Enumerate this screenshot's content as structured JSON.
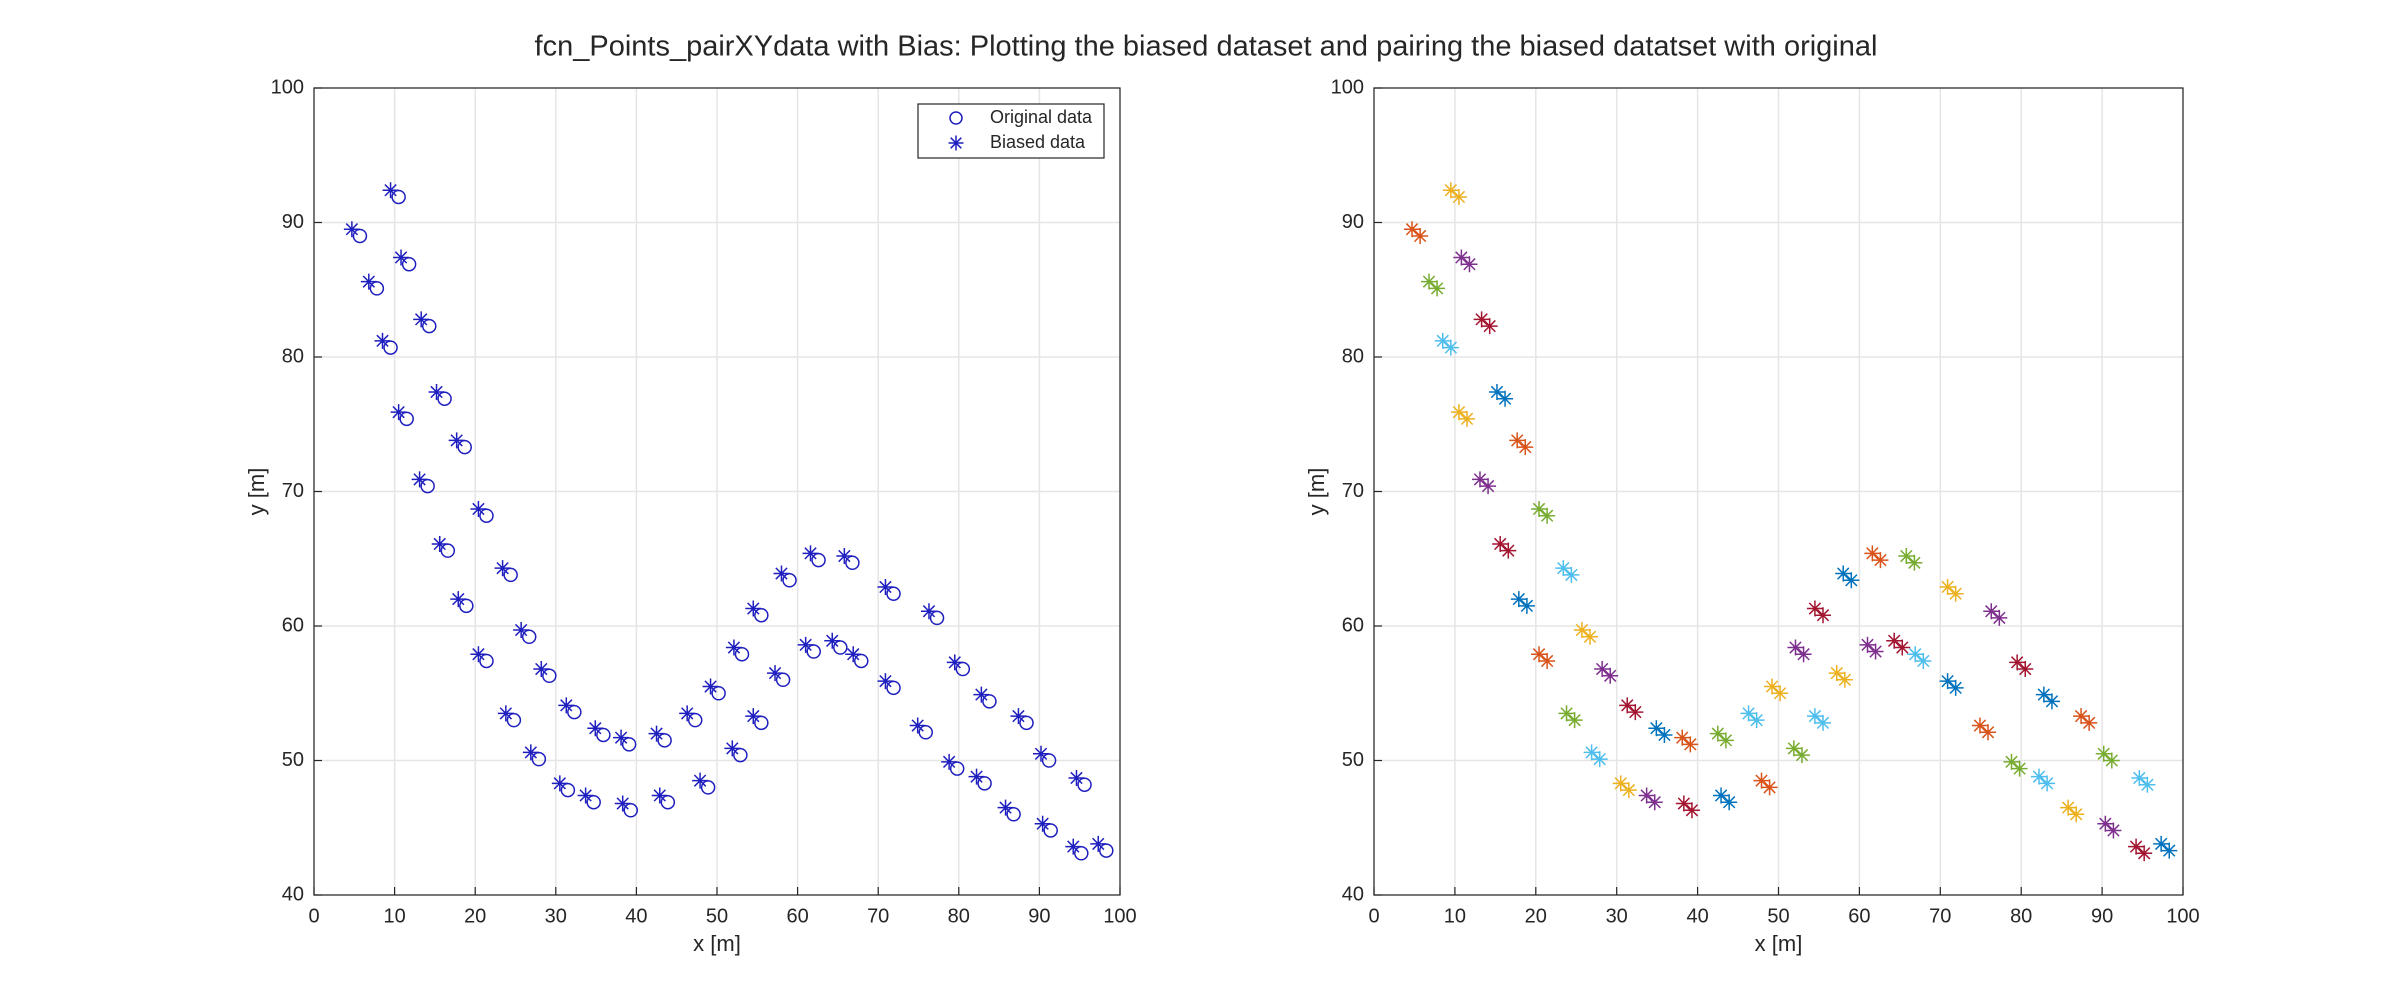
{
  "title": "fcn_Points_pairXYdata with Bias: Plotting the biased dataset and pairing the biased datatset with original",
  "chart_data": [
    {
      "type": "scatter",
      "xlabel": "x [m]",
      "ylabel": "y [m]",
      "xlim": [
        0,
        100
      ],
      "ylim": [
        40,
        100
      ],
      "xticks": [
        0,
        10,
        20,
        30,
        40,
        50,
        60,
        70,
        80,
        90,
        100
      ],
      "yticks": [
        40,
        50,
        60,
        70,
        80,
        90,
        100
      ],
      "grid": true,
      "legend": "northeast",
      "series": [
        {
          "name": "Original data",
          "color": "#1f1fbf",
          "marker": "circle",
          "x": [
            10.5,
            5.7,
            11.8,
            7.8,
            14.3,
            9.5,
            16.2,
            11.5,
            18.7,
            14.1,
            21.4,
            16.6,
            24.4,
            18.9,
            26.7,
            21.4,
            29.2,
            24.8,
            32.3,
            27.9,
            35.9,
            31.5,
            39.1,
            34.7,
            43.5,
            39.3,
            47.3,
            43.9,
            50.2,
            48.9,
            53.1,
            52.9,
            55.5,
            55.5,
            59.0,
            58.2,
            62.6,
            62.0,
            66.8,
            65.3,
            67.9,
            71.9,
            71.9,
            75.9,
            77.3,
            79.8,
            80.5,
            83.2,
            83.8,
            86.8,
            88.4,
            91.4,
            91.2,
            95.2,
            95.6,
            98.3
          ],
          "values": [
            91.9,
            89.0,
            86.9,
            85.1,
            82.3,
            80.7,
            76.9,
            75.4,
            73.3,
            70.4,
            68.2,
            65.6,
            63.8,
            61.5,
            59.2,
            57.4,
            56.3,
            53.0,
            53.6,
            50.1,
            51.9,
            47.8,
            51.2,
            46.9,
            51.5,
            46.3,
            53.0,
            46.9,
            55.0,
            48.0,
            57.9,
            50.4,
            60.8,
            52.8,
            63.4,
            56.0,
            64.9,
            58.1,
            64.7,
            58.4,
            57.4,
            55.4,
            62.4,
            52.1,
            60.6,
            49.4,
            56.8,
            48.3,
            54.4,
            46.0,
            52.8,
            44.8,
            50.0,
            43.1,
            48.2,
            43.3
          ]
        },
        {
          "name": "Biased data",
          "color": "#1f1fbf",
          "marker": "star",
          "x": [
            9.5,
            4.7,
            10.8,
            6.8,
            13.3,
            8.5,
            15.2,
            10.5,
            17.7,
            13.1,
            20.4,
            15.6,
            23.4,
            17.9,
            25.7,
            20.4,
            28.2,
            23.8,
            31.3,
            26.9,
            34.9,
            30.5,
            38.1,
            33.7,
            42.5,
            38.3,
            46.3,
            42.9,
            49.2,
            47.9,
            52.1,
            51.9,
            54.5,
            54.5,
            58.0,
            57.2,
            61.6,
            61.0,
            65.8,
            64.3,
            66.9,
            70.9,
            70.9,
            74.9,
            76.3,
            78.8,
            79.5,
            82.2,
            82.8,
            85.8,
            87.4,
            90.4,
            90.2,
            94.2,
            94.6,
            97.3
          ],
          "values": [
            92.4,
            89.5,
            87.4,
            85.6,
            82.8,
            81.2,
            77.4,
            75.9,
            73.8,
            70.9,
            68.7,
            66.1,
            64.3,
            62.0,
            59.7,
            57.9,
            56.8,
            53.5,
            54.1,
            50.6,
            52.4,
            48.3,
            51.7,
            47.4,
            52.0,
            46.8,
            53.5,
            47.4,
            55.5,
            48.5,
            58.4,
            50.9,
            61.3,
            53.3,
            63.9,
            56.5,
            65.4,
            58.6,
            65.2,
            58.9,
            57.9,
            55.9,
            62.9,
            52.6,
            61.1,
            49.9,
            57.3,
            48.8,
            54.9,
            46.5,
            53.3,
            45.3,
            50.5,
            43.6,
            48.7,
            43.8
          ]
        }
      ]
    },
    {
      "type": "pairs",
      "xlabel": "x [m]",
      "ylabel": "y [m]",
      "xlim": [
        0,
        100
      ],
      "ylim": [
        40,
        100
      ],
      "xticks": [
        0,
        10,
        20,
        30,
        40,
        50,
        60,
        70,
        80,
        90,
        100
      ],
      "yticks": [
        40,
        50,
        60,
        70,
        80,
        90,
        100
      ],
      "grid": true,
      "colors": [
        "#edb120",
        "#d95319",
        "#7e2f8e",
        "#77ac30",
        "#a2142f",
        "#4dbeee",
        "#0072bd"
      ],
      "series": [
        {
          "x": [
            10.5,
            5.7,
            11.8,
            7.8,
            14.3,
            9.5,
            16.2,
            11.5,
            18.7,
            14.1,
            21.4,
            16.6,
            24.4,
            18.9,
            26.7,
            21.4,
            29.2,
            24.8,
            32.3,
            27.9,
            35.9,
            31.5,
            39.1,
            34.7,
            43.5,
            39.3,
            47.3,
            43.9,
            50.2,
            48.9,
            53.1,
            52.9,
            55.5,
            55.5,
            59.0,
            58.2,
            62.6,
            62.0,
            66.8,
            65.3,
            67.9,
            71.9,
            71.9,
            75.9,
            77.3,
            79.8,
            80.5,
            83.2,
            83.8,
            86.8,
            88.4,
            91.4,
            91.2,
            95.2,
            95.6,
            98.3
          ],
          "values": [
            91.9,
            89.0,
            86.9,
            85.1,
            82.3,
            80.7,
            76.9,
            75.4,
            73.3,
            70.4,
            68.2,
            65.6,
            63.8,
            61.5,
            59.2,
            57.4,
            56.3,
            53.0,
            53.6,
            50.1,
            51.9,
            47.8,
            51.2,
            46.9,
            51.5,
            46.3,
            53.0,
            46.9,
            55.0,
            48.0,
            57.9,
            50.4,
            60.8,
            52.8,
            63.4,
            56.0,
            64.9,
            58.1,
            64.7,
            58.4,
            57.4,
            55.4,
            62.4,
            52.1,
            60.6,
            49.4,
            56.8,
            48.3,
            54.4,
            46.0,
            52.8,
            44.8,
            50.0,
            43.1,
            48.2,
            43.3
          ]
        },
        {
          "x": [
            9.5,
            4.7,
            10.8,
            6.8,
            13.3,
            8.5,
            15.2,
            10.5,
            17.7,
            13.1,
            20.4,
            15.6,
            23.4,
            17.9,
            25.7,
            20.4,
            28.2,
            23.8,
            31.3,
            26.9,
            34.9,
            30.5,
            38.1,
            33.7,
            42.5,
            38.3,
            46.3,
            42.9,
            49.2,
            47.9,
            52.1,
            51.9,
            54.5,
            54.5,
            58.0,
            57.2,
            61.6,
            61.0,
            65.8,
            64.3,
            66.9,
            70.9,
            70.9,
            74.9,
            76.3,
            78.8,
            79.5,
            82.2,
            82.8,
            85.8,
            87.4,
            90.4,
            90.2,
            94.2,
            94.6,
            97.3
          ],
          "values": [
            92.4,
            89.5,
            87.4,
            85.6,
            82.8,
            81.2,
            77.4,
            75.9,
            73.8,
            70.9,
            68.7,
            66.1,
            64.3,
            62.0,
            59.7,
            57.9,
            56.8,
            53.5,
            54.1,
            50.6,
            52.4,
            48.3,
            51.7,
            47.4,
            52.0,
            46.8,
            53.5,
            47.4,
            55.5,
            48.5,
            58.4,
            50.9,
            61.3,
            53.3,
            63.9,
            56.5,
            65.4,
            58.6,
            65.2,
            58.9,
            57.9,
            55.9,
            62.9,
            52.6,
            61.1,
            49.9,
            57.3,
            48.8,
            54.9,
            46.5,
            53.3,
            45.3,
            50.5,
            43.6,
            48.7,
            43.8
          ]
        }
      ]
    }
  ]
}
